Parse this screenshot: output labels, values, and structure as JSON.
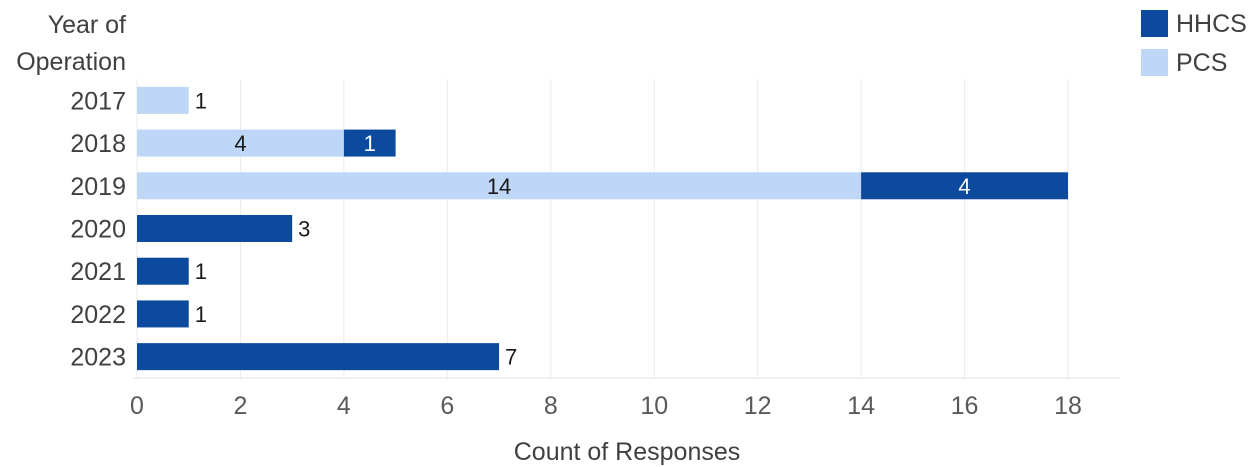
{
  "chart_data": {
    "type": "bar",
    "orientation": "horizontal",
    "stacked": true,
    "categories": [
      "2017",
      "2018",
      "2019",
      "2020",
      "2021",
      "2022",
      "2023"
    ],
    "series": [
      {
        "name": "PCS",
        "color": "#bfd7f7",
        "label_color": "#1a1a1a",
        "values": [
          1,
          4,
          14,
          0,
          0,
          0,
          0
        ]
      },
      {
        "name": "HHCS",
        "color": "#0b4a9c",
        "label_color": "#ffffff",
        "values": [
          0,
          1,
          4,
          3,
          1,
          1,
          7
        ]
      }
    ],
    "legend_order": [
      "HHCS",
      "PCS"
    ],
    "legend_position": "top-right",
    "ylabel": [
      "Year of",
      "Operation"
    ],
    "xlabel": "Count of Responses",
    "xlim": [
      0,
      18
    ],
    "xticks": [
      0,
      2,
      4,
      6,
      8,
      10,
      12,
      14,
      16,
      18
    ],
    "grid": "vertical"
  }
}
